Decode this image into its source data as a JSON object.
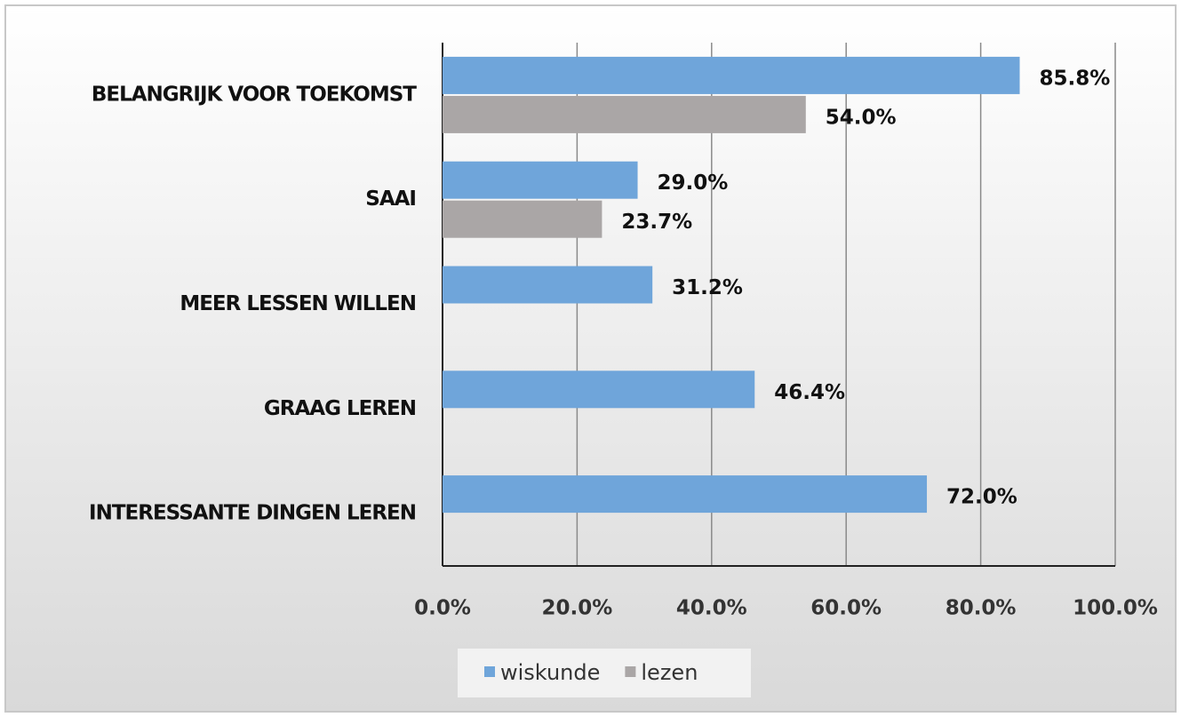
{
  "chart_data": {
    "type": "bar",
    "orientation": "horizontal",
    "categories": [
      "BELANGRIJK VOOR TOEKOMST",
      "SAAI",
      "MEER LESSEN WILLEN",
      "GRAAG LEREN",
      "INTERESSANTE DINGEN LEREN"
    ],
    "series": [
      {
        "name": "wiskunde",
        "color": "#6fa5da",
        "values": [
          85.8,
          29.0,
          31.2,
          46.4,
          72.0
        ],
        "value_labels": [
          "85.8%",
          "29.0%",
          "31.2%",
          "46.4%",
          "72.0%"
        ]
      },
      {
        "name": "lezen",
        "color": "#aaa6a6",
        "values": [
          54.0,
          23.7,
          null,
          null,
          null
        ],
        "value_labels": [
          "54.0%",
          "23.7%",
          null,
          null,
          null
        ]
      }
    ],
    "xlim": [
      0,
      100
    ],
    "xticks": [
      {
        "value": 0,
        "label": "0.0%"
      },
      {
        "value": 20,
        "label": "20.0%"
      },
      {
        "value": 40,
        "label": "40.0%"
      },
      {
        "value": 60,
        "label": "60.0%"
      },
      {
        "value": 80,
        "label": "80.0%"
      },
      {
        "value": 100,
        "label": "100.0%"
      }
    ],
    "grid": true,
    "legend": "bottom"
  }
}
